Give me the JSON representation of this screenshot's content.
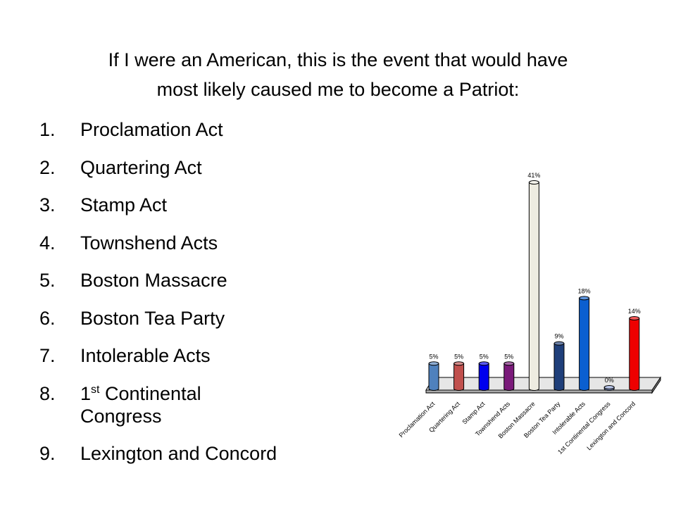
{
  "slide": {
    "title_lines": [
      "If I were an American, this is the event that would have",
      "most likely caused me to become a Patriot:"
    ],
    "options": [
      {
        "num": "1.",
        "text": "Proclamation Act"
      },
      {
        "num": "2.",
        "text": "Quartering Act"
      },
      {
        "num": "3.",
        "text": "Stamp Act"
      },
      {
        "num": "4.",
        "text": "Townshend Acts"
      },
      {
        "num": "5.",
        "text": "Boston Massacre"
      },
      {
        "num": "6.",
        "text": "Boston Tea Party"
      },
      {
        "num": "7.",
        "text": "Intolerable Acts"
      },
      {
        "num": "8.",
        "pre": "1",
        "sup": "st",
        "text": " Continental",
        "text2": "Congress"
      },
      {
        "num": "9.",
        "text": "Lexington and Concord"
      }
    ]
  },
  "chart_data": {
    "type": "bar",
    "categories": [
      "Proclamation Act",
      "Quartering Act",
      "Stamp Act",
      "Townshend Acts",
      "Boston Massacre",
      "Boston Tea Party",
      "Intolerable Acts",
      "1st Continental Congress",
      "Lexington and Concord"
    ],
    "values": [
      5,
      5,
      5,
      5,
      41,
      9,
      18,
      0,
      14
    ],
    "value_labels": [
      "5%",
      "5%",
      "5%",
      "5%",
      "41%",
      "9%",
      "18%",
      "0%",
      "14%"
    ],
    "unit": "%",
    "ylim": [
      0,
      41
    ],
    "grid": false,
    "legend": "none",
    "style": "3d-cylinder",
    "colors": [
      "#4f81bd",
      "#c0504d",
      "#0000ee",
      "#7a1a7a",
      "#eeece1",
      "#1f3f7a",
      "#0b5fd0",
      "#8ea2d8",
      "#ee0000"
    ]
  }
}
